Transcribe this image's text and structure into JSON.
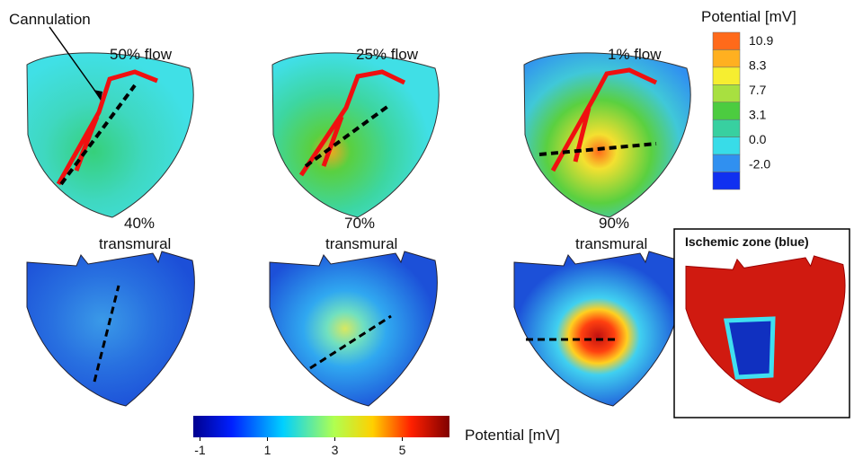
{
  "labels": {
    "cannulation": "Cannulation"
  },
  "panels": [
    {
      "flow": "50% flow",
      "transmural_pct": "40%",
      "transmural": "transmural"
    },
    {
      "flow": "25% flow",
      "transmural_pct": "70%",
      "transmural": "transmural"
    },
    {
      "flow": "1% flow",
      "transmural_pct": "90%",
      "transmural": "transmural"
    }
  ],
  "legend": {
    "title": "Potential [mV]",
    "values": [
      "10.9",
      "8.3",
      "7.7",
      "3.1",
      "0.0",
      "-2.0"
    ]
  },
  "inset": {
    "title": "Ischemic zone (blue)"
  },
  "colorbar": {
    "title": "Potential [mV]",
    "lim": [
      -1.2,
      6.4
    ],
    "ticks": [
      -1,
      1,
      3,
      5
    ]
  }
}
